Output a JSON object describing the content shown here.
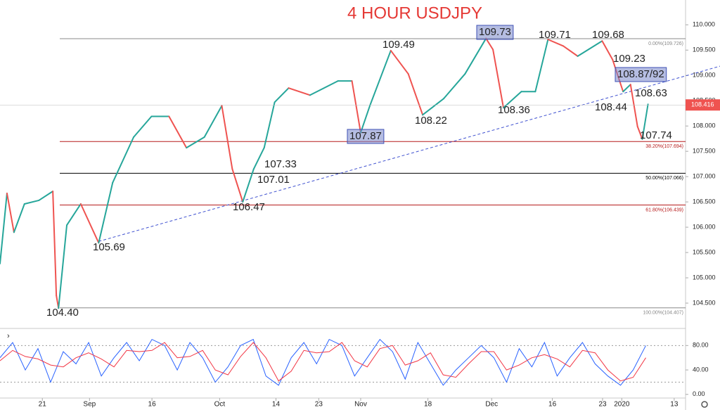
{
  "chart_data": [
    {
      "type": "line",
      "title": "4 HOUR USDJPY",
      "x": [
        0,
        1.6,
        3.2,
        5.6,
        8.9,
        12.1,
        12.9,
        13.4,
        15.3,
        18.5,
        22.6,
        25.8,
        30.6,
        34.7,
        38.7,
        42.7,
        46.8,
        50.8,
        53.2,
        55.6,
        58.1,
        60.5,
        62.9,
        66.1,
        71,
        77.4,
        80.6,
        82.6,
        84.7,
        89.5,
        93.5,
        96.8,
        101.6,
        106.5,
        111.3,
        112.9,
        115.3,
        119.4,
        122.6,
        125.5,
        129,
        132.3,
        137.9,
        140.3,
        142.7,
        144.4,
        146,
        147.1,
        148.4
      ],
      "values": [
        105.28,
        106.67,
        105.9,
        106.46,
        106.53,
        106.71,
        104.65,
        104.4,
        106.04,
        106.46,
        105.69,
        106.88,
        107.78,
        108.19,
        108.19,
        107.57,
        107.78,
        108.4,
        107.15,
        106.5,
        107.15,
        107.57,
        108.47,
        108.75,
        108.61,
        108.89,
        108.89,
        107.87,
        108.4,
        109.49,
        109.03,
        108.22,
        108.54,
        109.03,
        109.73,
        109.51,
        108.36,
        108.68,
        108.68,
        109.71,
        109.58,
        109.38,
        109.68,
        109.31,
        108.68,
        108.82,
        107.99,
        107.74,
        108.43
      ],
      "up_color": "#26a69a",
      "down_color": "#ef5350",
      "xlim": [
        0,
        157
      ],
      "xticks": [
        {
          "value": 9.7,
          "label": "21"
        },
        {
          "value": 20.5,
          "label": "Sep"
        },
        {
          "value": 34.8,
          "label": "16"
        },
        {
          "value": 50.3,
          "label": "Oct"
        },
        {
          "value": 63.2,
          "label": "14"
        },
        {
          "value": 73,
          "label": "23"
        },
        {
          "value": 82.6,
          "label": "Nov"
        },
        {
          "value": 98,
          "label": "18"
        },
        {
          "value": 112.6,
          "label": "Dec"
        },
        {
          "value": 126.5,
          "label": "16"
        },
        {
          "value": 138,
          "label": "23"
        },
        {
          "value": 142.4,
          "label": "2020"
        },
        {
          "value": 154.4,
          "label": "13"
        }
      ],
      "ylim": [
        104.0,
        110.49
      ],
      "yticks": [
        {
          "value": 104.5,
          "label": "104.500"
        },
        {
          "value": 105,
          "label": "105.000"
        },
        {
          "value": 105.5,
          "label": "105.500"
        },
        {
          "value": 106,
          "label": "106.000"
        },
        {
          "value": 106.5,
          "label": "106.500"
        },
        {
          "value": 107,
          "label": "107.000"
        },
        {
          "value": 107.5,
          "label": "107.500"
        },
        {
          "value": 108,
          "label": "108.000"
        },
        {
          "value": 108.5,
          "label": "108.500"
        },
        {
          "value": 109,
          "label": "109.000"
        },
        {
          "value": 109.5,
          "label": "109.500"
        },
        {
          "value": 110,
          "label": "110.000"
        }
      ],
      "fib_levels": [
        {
          "value": 109.726,
          "label": "0.00%(109.726)",
          "color": "#888888"
        },
        {
          "value": 107.694,
          "label": "38.20%(107.694)",
          "color": "#b71c1c"
        },
        {
          "value": 107.066,
          "label": "50.00%(107.066)",
          "color": "#000000"
        },
        {
          "value": 106.439,
          "label": "61.80%(106.439)",
          "color": "#b71c1c"
        },
        {
          "value": 104.407,
          "label": "100.00%(104.407)",
          "color": "#888888"
        }
      ],
      "trendline": {
        "x": [
          22.6,
          165.2
        ],
        "values": [
          105.72,
          109.19
        ],
        "color": "#3f51d0"
      },
      "current_price": 108.416,
      "current_price_color": "#ef5350",
      "annotations": [
        "104.40",
        "105.69",
        "106.47",
        "107.01",
        "107.33",
        "107.87",
        "109.49",
        "108.22",
        "109.73",
        "108.36",
        "109.71",
        "109.68",
        "109.23",
        "108.87/92",
        "108.44",
        "108.63",
        "107.74"
      ],
      "boxed": [
        false,
        false,
        false,
        false,
        false,
        true,
        false,
        false,
        true,
        false,
        false,
        false,
        false,
        true,
        false,
        false,
        false
      ]
    },
    {
      "type": "line",
      "x": [
        0,
        2.9,
        5.8,
        8.7,
        11.6,
        14.5,
        17.4,
        20.3,
        23.2,
        26.1,
        29,
        31.9,
        34.8,
        37.7,
        40.6,
        43.5,
        46.4,
        49.3,
        52.2,
        55.1,
        58,
        60.9,
        63.8,
        66.7,
        69.6,
        72.5,
        75.4,
        78.3,
        81.2,
        84.1,
        87,
        89.9,
        92.8,
        95.7,
        98.6,
        101.5,
        104.4,
        107.3,
        110.2,
        113.1,
        116,
        118.9,
        121.8,
        124.7,
        127.6,
        130.5,
        133.4,
        136.3,
        139.2,
        142.1,
        145,
        147.9
      ],
      "series": [
        {
          "color": "#2962ff",
          "values": [
            60,
            85,
            40,
            75,
            20,
            70,
            50,
            85,
            30,
            60,
            85,
            55,
            90,
            80,
            40,
            85,
            60,
            20,
            45,
            80,
            90,
            30,
            15,
            60,
            85,
            50,
            90,
            80,
            30,
            60,
            90,
            70,
            25,
            85,
            50,
            15,
            40,
            60,
            80,
            60,
            20,
            75,
            45,
            85,
            30,
            60,
            85,
            50,
            30,
            15,
            40,
            80
          ]
        },
        {
          "color": "#f23645",
          "values": [
            55,
            72,
            62,
            58,
            48,
            45,
            60,
            68,
            58,
            45,
            72,
            70,
            72,
            85,
            60,
            62,
            72,
            40,
            32,
            62,
            85,
            60,
            22,
            38,
            72,
            68,
            70,
            85,
            55,
            45,
            75,
            80,
            48,
            55,
            68,
            32,
            28,
            50,
            70,
            70,
            40,
            48,
            60,
            65,
            58,
            45,
            72,
            68,
            40,
            22,
            28,
            60
          ]
        }
      ],
      "xlim": [
        0,
        157
      ],
      "ylim": [
        -6,
        108
      ],
      "yticks": [
        {
          "value": 0,
          "label": "0.00"
        },
        {
          "value": 40,
          "label": "40.00"
        },
        {
          "value": 80,
          "label": "80.00"
        }
      ],
      "levels": [
        20,
        80
      ]
    }
  ]
}
